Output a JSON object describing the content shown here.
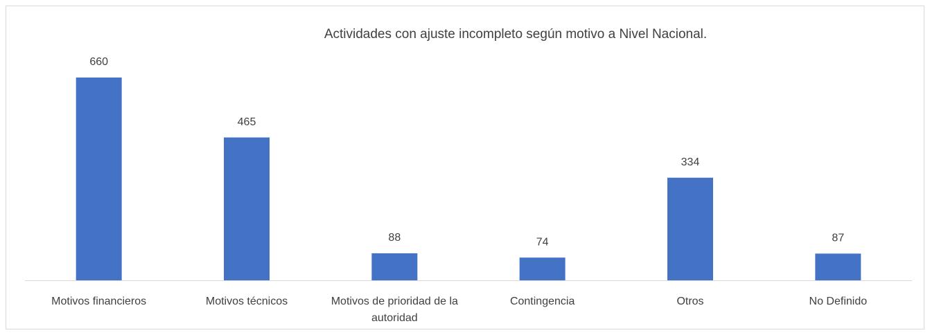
{
  "chart_data": {
    "type": "bar",
    "title": "Actividades con ajuste incompleto según motivo a Nivel Nacional.",
    "categories": [
      "Motivos financieros",
      "Motivos técnicos",
      "Motivos de prioridad de la autoridad",
      "Contingencia",
      "Otros",
      "No Definido"
    ],
    "values": [
      660,
      465,
      88,
      74,
      334,
      87
    ],
    "color": "#4472c4"
  }
}
